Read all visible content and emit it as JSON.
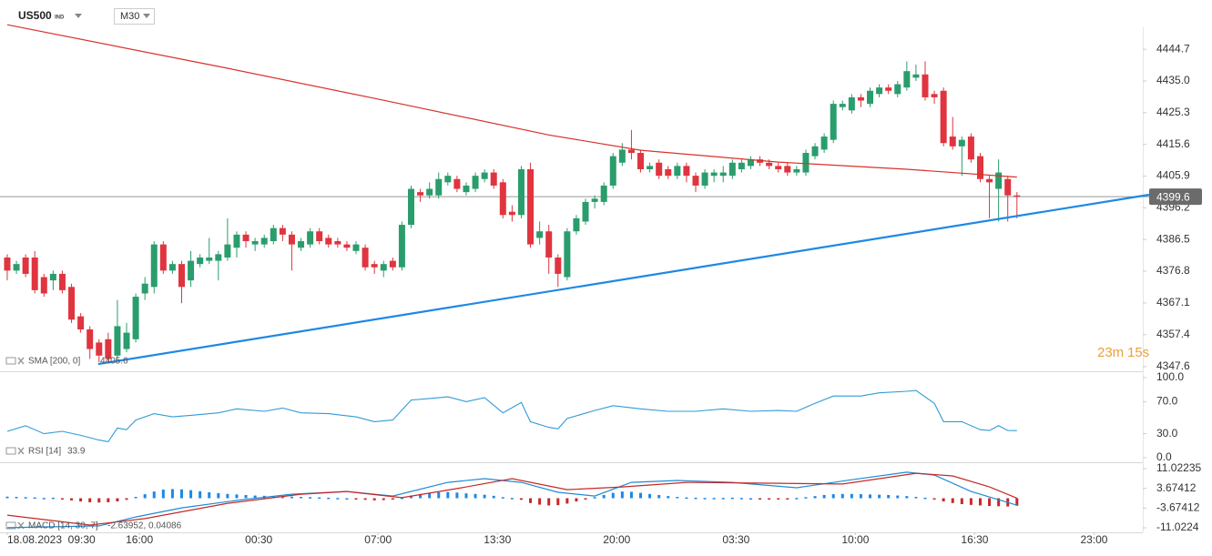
{
  "header": {
    "symbol": "US500",
    "market": "IND",
    "interval": "M30"
  },
  "countdown": {
    "minutes": "23m",
    "seconds": "15s"
  },
  "chart_data": [
    {
      "type": "candlestick",
      "open": [
        4381,
        4377,
        4381,
        4381,
        4375,
        4374,
        4376,
        4372,
        4363,
        4359,
        4355,
        4356,
        4351,
        4353,
        4356,
        4370,
        4372,
        4385,
        4377,
        4379,
        4374,
        4379,
        4380,
        4380,
        4381,
        4384,
        4388,
        4385,
        4385,
        4386,
        4390,
        4388,
        4384,
        4385,
        4389,
        4387,
        4386,
        4385,
        4383,
        4384,
        4379,
        4377,
        4380,
        4378,
        4391,
        4401,
        4400,
        4400,
        4404,
        4405,
        4401,
        4402,
        4405,
        4407,
        4404,
        4395,
        4394,
        4408,
        4387,
        4389,
        4381,
        4375,
        4389,
        4392,
        4398,
        4398,
        4403,
        4410,
        4414,
        4413,
        4408,
        4410,
        4408,
        4406,
        4409,
        4406,
        4403,
        4406,
        4406,
        4406,
        4408,
        4409,
        4411,
        4410,
        4409,
        4409,
        4407,
        4407,
        4412,
        4414,
        4417,
        4427,
        4426,
        4430,
        4428,
        4431,
        4433,
        4431,
        4433,
        4436,
        4437,
        4431,
        4432,
        4418,
        4415,
        4418,
        4412,
        4405,
        4402,
        4405,
        4400
      ],
      "high": [
        4382,
        4380,
        4382,
        4383,
        4376,
        4377,
        4377,
        4373,
        4364,
        4360,
        4356,
        4358,
        4368,
        4361,
        4370,
        4375,
        4386,
        4386,
        4380,
        4380,
        4383,
        4382,
        4387,
        4383,
        4393,
        4389,
        4389,
        4387,
        4388,
        4391,
        4391,
        4389,
        4387,
        4390,
        4390,
        4388,
        4387,
        4386,
        4386,
        4385,
        4380,
        4380,
        4381,
        4392,
        4403,
        4402,
        4404,
        4407,
        4407,
        4406,
        4404,
        4407,
        4408,
        4408,
        4405,
        4397,
        4409,
        4410,
        4392,
        4391,
        4382,
        4390,
        4394,
        4399,
        4400,
        4404,
        4413,
        4416,
        4420,
        4414,
        4410,
        4411,
        4409,
        4410,
        4410,
        4407,
        4408,
        4408,
        4409,
        4411,
        4411,
        4412,
        4412,
        4411,
        4410,
        4410,
        4409,
        4414,
        4416,
        4419,
        4429,
        4429,
        4431,
        4431,
        4433,
        4434,
        4434,
        4435,
        4441,
        4440,
        4441,
        4432,
        4433,
        4424,
        4418,
        4419,
        4413,
        4406,
        4411,
        4406,
        4401
      ],
      "low": [
        4374,
        4376,
        4375,
        4370,
        4369,
        4371,
        4370,
        4361,
        4358,
        4350,
        4349,
        4349,
        4350,
        4352,
        4355,
        4368,
        4370,
        4376,
        4376,
        4367,
        4372,
        4378,
        4379,
        4374,
        4380,
        4381,
        4384,
        4383,
        4384,
        4385,
        4386,
        4377,
        4383,
        4384,
        4385,
        4384,
        4384,
        4383,
        4382,
        4377,
        4376,
        4375,
        4377,
        4377,
        4390,
        4398,
        4399,
        4399,
        4403,
        4401,
        4400,
        4401,
        4404,
        4402,
        4393,
        4392,
        4393,
        4384,
        4385,
        4376,
        4372,
        4374,
        4388,
        4391,
        4396,
        4397,
        4402,
        4409,
        4411,
        4407,
        4407,
        4405,
        4405,
        4405,
        4404,
        4401,
        4402,
        4404,
        4404,
        4405,
        4407,
        4408,
        4409,
        4408,
        4407,
        4406,
        4406,
        4406,
        4411,
        4413,
        4416,
        4426,
        4425,
        4427,
        4427,
        4430,
        4431,
        4430,
        4432,
        4435,
        4429,
        4428,
        4415,
        4414,
        4406,
        4410,
        4404,
        4393,
        4392,
        4392,
        4393
      ],
      "close": [
        4377,
        4379,
        4376,
        4371,
        4370,
        4376,
        4371,
        4362,
        4359,
        4353,
        4351,
        4350,
        4360,
        4358,
        4369,
        4373,
        4385,
        4377,
        4379,
        4372,
        4380,
        4381,
        4381,
        4382,
        4385,
        4388,
        4386,
        4386,
        4387,
        4390,
        4388,
        4385,
        4386,
        4389,
        4386,
        4385,
        4385,
        4384,
        4385,
        4378,
        4378,
        4379,
        4378,
        4391,
        4402,
        4400,
        4402,
        4405,
        4406,
        4402,
        4403,
        4406,
        4407,
        4403,
        4394,
        4394,
        4408,
        4385,
        4389,
        4381,
        4376,
        4389,
        4393,
        4398,
        4399,
        4403,
        4412,
        4414,
        4413,
        4408,
        4409,
        4406,
        4406,
        4409,
        4406,
        4403,
        4407,
        4407,
        4407,
        4410,
        4410,
        4411,
        4410,
        4409,
        4408,
        4407,
        4408,
        4413,
        4415,
        4418,
        4428,
        4428,
        4430,
        4429,
        4432,
        4433,
        4432,
        4434,
        4438,
        4437,
        4430,
        4430,
        4416,
        4415,
        4417,
        4411,
        4405,
        4404,
        4407,
        4400,
        4399.6
      ],
      "up_color": "#2a9d6c",
      "down_color": "#e0343f",
      "sma": {
        "name": "SMA [200, 0]",
        "value": 4405.6,
        "color": "#d7322c",
        "x": [
          0,
          24,
          41,
          59,
          69,
          84,
          98,
          110
        ],
        "values": [
          4452.2,
          4438.9,
          4429.1,
          4418.5,
          4413.8,
          4410.2,
          4408,
          4405.6
        ]
      },
      "trendline": {
        "x": [
          9.9,
          124.4
        ],
        "values": [
          4348.4,
          4400.2
        ],
        "color": "#1e88e5"
      },
      "last_price": 4399.6,
      "xlim": [
        -0.79,
        123.71
      ],
      "xticks": [
        {
          "value": 0,
          "label": "18.08.2023  09:30"
        },
        {
          "value": 14.4,
          "label": "16:00"
        },
        {
          "value": 27.4,
          "label": "00:30"
        },
        {
          "value": 40.4,
          "label": "07:00"
        },
        {
          "value": 53.4,
          "label": "13:30"
        },
        {
          "value": 66.4,
          "label": "20:00"
        },
        {
          "value": 79.4,
          "label": "03:30"
        },
        {
          "value": 92.4,
          "label": "10:00"
        },
        {
          "value": 105.4,
          "label": "16:30"
        },
        {
          "value": 118.4,
          "label": "23:00"
        }
      ],
      "ylim": [
        4346.2,
        4454.2
      ],
      "yticks": [
        4444.7,
        {
          "value": 4435,
          "label": "4435.0"
        },
        4425.3,
        4415.6,
        4405.9,
        4396.2,
        4386.5,
        4376.8,
        4367.1,
        4357.4,
        4347.6
      ]
    },
    {
      "type": "line",
      "name": "RSI [14]",
      "value": 33.9,
      "color": "#2f9bd6",
      "x": [
        0,
        2,
        4,
        6,
        8,
        10,
        11,
        12,
        13,
        14,
        16,
        18,
        20,
        23,
        25,
        28,
        30,
        32,
        35,
        38,
        40,
        42,
        44,
        46,
        48,
        50,
        52,
        54,
        56,
        57,
        59,
        60,
        61,
        64,
        66,
        69,
        72,
        75,
        78,
        81,
        84,
        86,
        88,
        90,
        93,
        95,
        98,
        99,
        101,
        102,
        104,
        106,
        107,
        108,
        109,
        110
      ],
      "values": [
        33,
        40,
        30,
        33,
        28,
        22,
        20,
        37,
        35,
        47,
        55,
        51,
        53,
        56,
        61,
        58,
        62,
        56,
        55,
        51,
        45,
        47,
        72,
        74,
        76,
        70,
        75,
        56,
        69,
        45,
        38,
        36,
        49,
        59,
        65,
        61,
        58,
        58,
        61,
        58,
        59,
        58,
        68,
        77,
        77,
        81,
        83,
        84,
        68,
        45,
        45,
        35,
        34,
        40,
        34,
        33.9
      ],
      "ylim": [
        0,
        100
      ],
      "yticks": [
        {
          "value": 100,
          "label": "100.0"
        },
        {
          "value": 70,
          "label": "70.0"
        },
        {
          "value": 30,
          "label": "30.0"
        },
        {
          "value": 0,
          "label": "0.0"
        }
      ]
    },
    {
      "type": "macd",
      "name": "MACD [14, 30, 7]",
      "value_label": "-2.63952, 0.04086",
      "histogram": [
        0.6,
        0.5,
        0.4,
        0.3,
        0.1,
        0.2,
        -0.3,
        -0.8,
        -1.2,
        -1.5,
        -1.6,
        -1.5,
        -1.2,
        -0.6,
        0.5,
        1.5,
        2.5,
        3.2,
        3.4,
        3.3,
        3.0,
        2.6,
        2.2,
        1.9,
        1.6,
        1.4,
        1.2,
        1.0,
        0.9,
        0.8,
        0.7,
        0.6,
        0.5,
        0.4,
        0.3,
        0.2,
        0.1,
        0,
        -0.3,
        -0.6,
        -0.8,
        -0.7,
        -0.5,
        0.2,
        1.0,
        1.6,
        2.0,
        2.2,
        2.3,
        2.1,
        1.8,
        1.6,
        1.3,
        0.9,
        0.4,
        0.1,
        -0.6,
        -1.8,
        -2.4,
        -2.7,
        -2.6,
        -2.0,
        -1.2,
        -0.5,
        0.4,
        1.2,
        2.0,
        2.5,
        2.4,
        2.0,
        1.6,
        1.2,
        0.8,
        0.5,
        0.3,
        0.2,
        0.1,
        0.1,
        0.1,
        0.2,
        0.1,
        0,
        -0.1,
        -0.2,
        -0.3,
        -0.2,
        0.1,
        0.4,
        0.8,
        1.2,
        1.5,
        1.6,
        1.6,
        1.5,
        1.4,
        1.3,
        1.2,
        1.0,
        0.8,
        0.5,
        0.2,
        -0.4,
        -1.2,
        -1.8,
        -2.2,
        -2.5,
        -2.7,
        -2.9,
        -3.0,
        -3.1,
        -2.8
      ],
      "up_color": "#1e88e5",
      "down_color": "#c62828",
      "series": [
        {
          "color": "#1e8bd4",
          "x": [
            0,
            10,
            14,
            19,
            25,
            31,
            37,
            42,
            48,
            52,
            56,
            60,
            64,
            68,
            73,
            79,
            86,
            92,
            98,
            101,
            105,
            110
          ],
          "values": [
            -11,
            -10.3,
            -7,
            -3.6,
            -0.8,
            1.5,
            2.5,
            0.8,
            5.9,
            7.3,
            5.9,
            2.2,
            0.8,
            5.9,
            6.6,
            5.9,
            3.9,
            6.9,
            9.7,
            8.6,
            2.5,
            -2.6
          ]
        },
        {
          "color": "#c62828",
          "x": [
            0,
            9,
            15,
            24,
            32,
            37,
            43,
            49,
            55,
            61,
            67,
            74,
            83,
            91,
            99,
            103,
            107,
            110
          ],
          "values": [
            -6.3,
            -10,
            -7.6,
            -1.9,
            1.5,
            2.5,
            0.2,
            3.6,
            7.3,
            3.2,
            4.2,
            5.9,
            5.6,
            5.3,
            9.3,
            8.3,
            4.2,
            0.04
          ]
        }
      ],
      "ylim": [
        -11.0224,
        11.02235
      ],
      "yticks": [
        11.02235,
        3.67412,
        -3.67412,
        -11.0224
      ]
    }
  ]
}
